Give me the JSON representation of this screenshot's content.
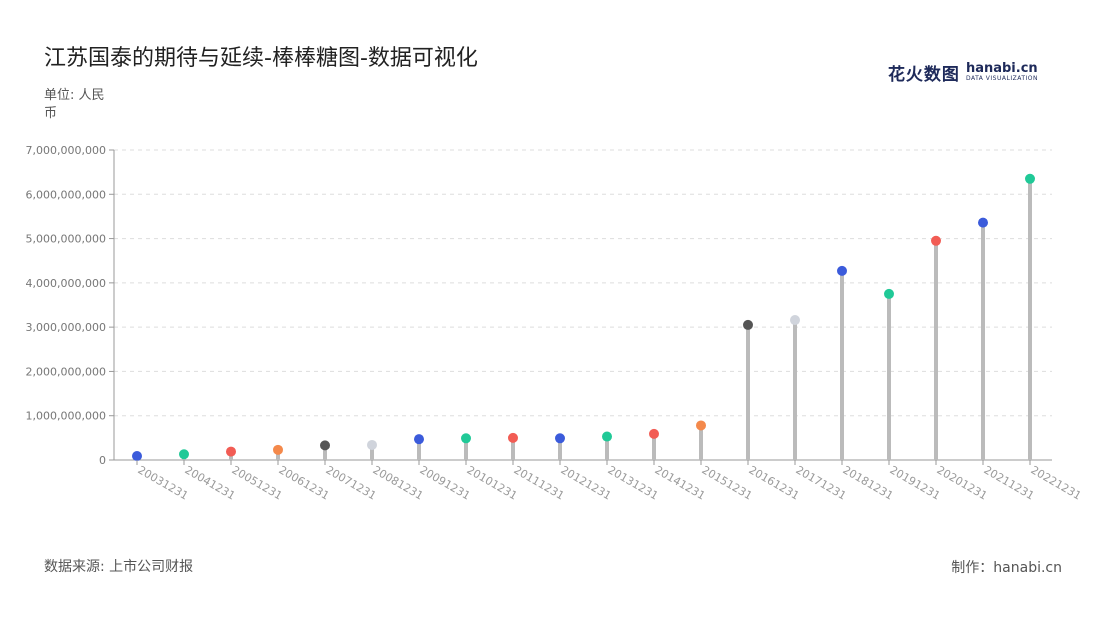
{
  "title": "江苏国泰的期待与延续-棒棒糖图-数据可视化",
  "unit_label": "单位: 人民币",
  "source_label": "数据来源: 上市公司财报",
  "credit_label": "制作：hanabi.cn",
  "logo": {
    "cn": "花火数图",
    "en": "hanabi.cn",
    "sub": "DATA VISUALIZATION"
  },
  "watermark": "花火数图 hanabi.cn",
  "chart_data": {
    "type": "lollipop",
    "title": "江苏国泰的期待与延续-棒棒糖图-数据可视化",
    "xlabel": "",
    "ylabel": "单位: 人民币",
    "ylim": [
      0,
      7000000000
    ],
    "yticks": [
      0,
      1000000000,
      2000000000,
      3000000000,
      4000000000,
      5000000000,
      6000000000,
      7000000000
    ],
    "ytick_labels": [
      "0",
      "1,000,000,000",
      "2,000,000,000",
      "3,000,000,000",
      "4,000,000,000",
      "5,000,000,000",
      "6,000,000,000",
      "7,000,000,000"
    ],
    "grid": true,
    "categories": [
      "20031231",
      "20041231",
      "20051231",
      "20061231",
      "20071231",
      "20081231",
      "20091231",
      "20101231",
      "20111231",
      "20121231",
      "20131231",
      "20141231",
      "20151231",
      "20161231",
      "20171231",
      "20181231",
      "20191231",
      "20201231",
      "20211231",
      "20221231"
    ],
    "values": [
      90000000,
      130000000,
      190000000,
      230000000,
      330000000,
      340000000,
      470000000,
      490000000,
      500000000,
      490000000,
      530000000,
      590000000,
      780000000,
      3050000000,
      3160000000,
      4270000000,
      3750000000,
      4950000000,
      5360000000,
      6350000000
    ],
    "colors": [
      "#3b5bdb",
      "#20c997",
      "#f25c54",
      "#f4894b",
      "#555555",
      "#d0d4dc",
      "#3b5bdb",
      "#20c997",
      "#f25c54",
      "#3b5bdb",
      "#20c997",
      "#f25c54",
      "#f4894b",
      "#555555",
      "#d0d4dc",
      "#3b5bdb",
      "#20c997",
      "#f25c54",
      "#3b5bdb",
      "#20c997"
    ],
    "stem_color": "#bbbbbb"
  }
}
